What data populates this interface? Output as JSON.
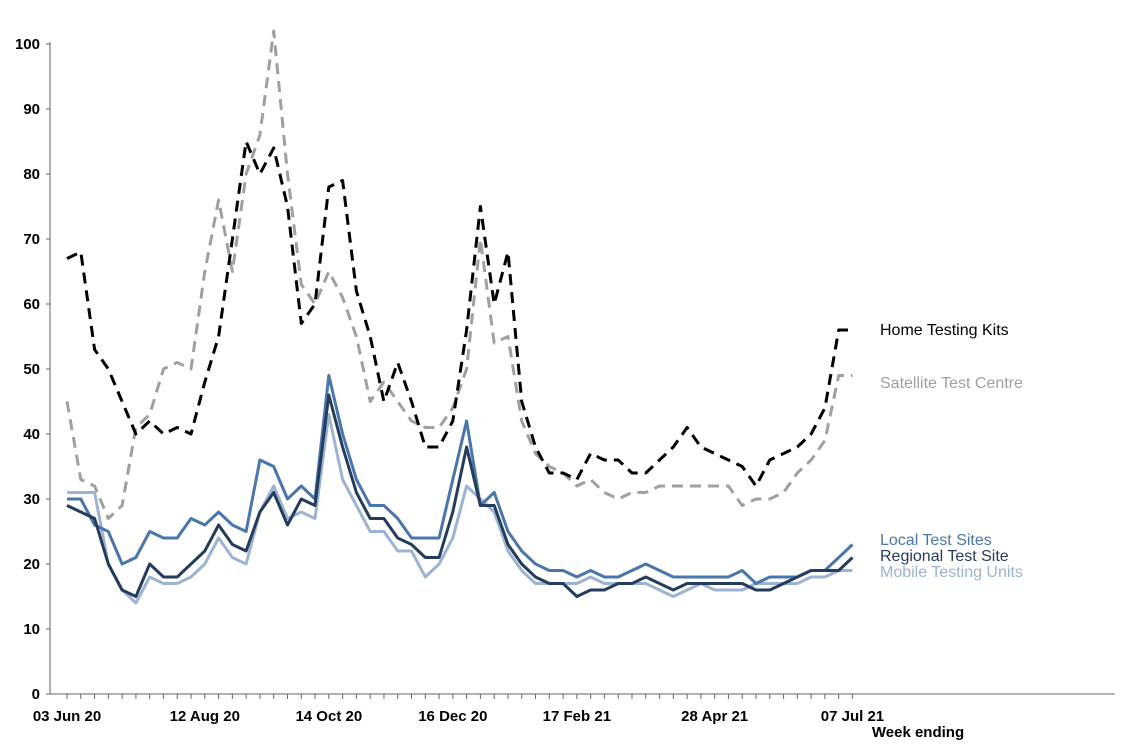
{
  "chart_data": {
    "type": "line",
    "title": "",
    "xlabel": "Week ending",
    "ylabel": "",
    "ylim": [
      0,
      100
    ],
    "y_ticks": [
      0,
      10,
      20,
      30,
      40,
      50,
      60,
      70,
      80,
      90,
      100
    ],
    "x_tick_labels": [
      {
        "index": 0,
        "label": "03 Jun 20"
      },
      {
        "index": 10,
        "label": "12 Aug 20"
      },
      {
        "index": 19,
        "label": "14 Oct 20"
      },
      {
        "index": 28,
        "label": "16 Dec 20"
      },
      {
        "index": 37,
        "label": "17 Feb 21"
      },
      {
        "index": 47,
        "label": "28 Apr 21"
      },
      {
        "index": 57,
        "label": "07 Jul 21"
      }
    ],
    "num_weeks": 58,
    "series": [
      {
        "name": "Home Testing Kits",
        "color": "#000000",
        "dashed": true,
        "values": [
          67,
          68,
          53,
          50,
          45,
          40,
          42,
          40,
          41,
          40,
          48,
          55,
          70,
          85,
          80,
          84,
          75,
          57,
          60,
          78,
          79,
          62,
          55,
          45,
          51,
          45,
          38,
          38,
          42,
          56,
          75,
          60,
          68,
          45,
          38,
          34,
          34,
          33,
          37,
          36,
          36,
          34,
          34,
          36,
          38,
          41,
          38,
          37,
          36,
          35,
          32,
          36,
          37,
          38,
          40,
          44,
          56,
          56
        ]
      },
      {
        "name": "Satellite Test Centre",
        "color": "#a0a0a0",
        "dashed": true,
        "values": [
          45,
          33,
          32,
          27,
          29,
          41,
          43,
          50,
          51,
          50,
          65,
          76,
          65,
          80,
          86,
          102,
          80,
          63,
          60,
          65,
          61,
          55,
          45,
          48,
          45,
          42,
          41,
          41,
          44,
          50,
          70,
          54,
          55,
          42,
          37,
          35,
          34,
          32,
          33,
          31,
          30,
          31,
          31,
          32,
          32,
          32,
          32,
          32,
          32,
          29,
          30,
          30,
          31,
          34,
          36,
          39,
          49,
          49
        ]
      },
      {
        "name": "Local Test Sites",
        "color": "#4a76ae",
        "dashed": false,
        "values": [
          30,
          30,
          26,
          25,
          20,
          21,
          25,
          24,
          24,
          27,
          26,
          28,
          26,
          25,
          36,
          35,
          30,
          32,
          30,
          49,
          40,
          33,
          29,
          29,
          27,
          24,
          24,
          24,
          33,
          42,
          29,
          31,
          25,
          22,
          20,
          19,
          19,
          18,
          19,
          18,
          18,
          19,
          20,
          19,
          18,
          18,
          18,
          18,
          18,
          19,
          17,
          18,
          18,
          18,
          19,
          19,
          21,
          23
        ]
      },
      {
        "name": "Regional Test Site",
        "color": "#253c5c",
        "dashed": false,
        "values": [
          29,
          28,
          27,
          20,
          16,
          15,
          20,
          18,
          18,
          20,
          22,
          26,
          23,
          22,
          28,
          31,
          26,
          30,
          29,
          46,
          38,
          31,
          27,
          27,
          24,
          23,
          21,
          21,
          28,
          38,
          29,
          29,
          23,
          20,
          18,
          17,
          17,
          15,
          16,
          16,
          17,
          17,
          18,
          17,
          16,
          17,
          17,
          17,
          17,
          17,
          16,
          16,
          17,
          18,
          19,
          19,
          19,
          21
        ]
      },
      {
        "name": "Mobile Testing Units",
        "color": "#9db3d3",
        "dashed": false,
        "values": [
          31,
          31,
          31,
          20,
          16,
          14,
          18,
          17,
          17,
          18,
          20,
          24,
          21,
          20,
          28,
          32,
          27,
          28,
          27,
          43,
          33,
          29,
          25,
          25,
          22,
          22,
          18,
          20,
          24,
          32,
          30,
          28,
          22,
          19,
          17,
          17,
          17,
          17,
          18,
          17,
          17,
          17,
          17,
          16,
          15,
          16,
          17,
          16,
          16,
          16,
          17,
          17,
          17,
          17,
          18,
          18,
          19,
          19
        ]
      }
    ]
  }
}
